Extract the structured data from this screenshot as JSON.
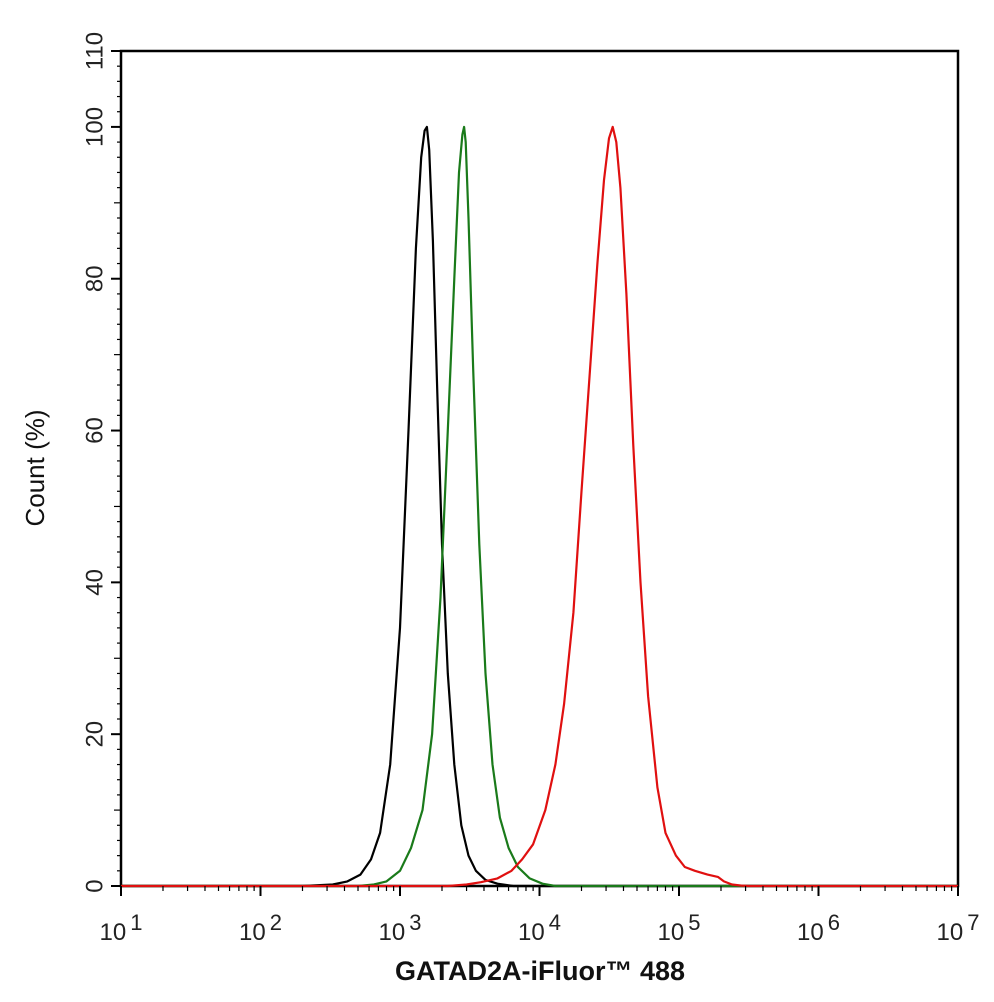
{
  "chart_data": {
    "type": "line",
    "xlabel": "GATAD2A-iFluor™ 488",
    "ylabel": "Count  (%)",
    "x_scale": "log",
    "xlim": [
      10,
      10000000
    ],
    "ylim": [
      0,
      110
    ],
    "x_ticks": [
      {
        "value": 10,
        "base": "10",
        "exp": "1"
      },
      {
        "value": 100,
        "base": "10",
        "exp": "2"
      },
      {
        "value": 1000,
        "base": "10",
        "exp": "3"
      },
      {
        "value": 10000,
        "base": "10",
        "exp": "4"
      },
      {
        "value": 100000,
        "base": "10",
        "exp": "5"
      },
      {
        "value": 1000000,
        "base": "10",
        "exp": "6"
      },
      {
        "value": 10000000,
        "base": "10",
        "exp": "7"
      }
    ],
    "y_ticks": [
      "0",
      "20",
      "40",
      "60",
      "80",
      "100",
      "110"
    ],
    "grid": false,
    "legend": "none",
    "series": [
      {
        "color": "#000000",
        "x": [
          10,
          200,
          330,
          420,
          520,
          620,
          720,
          850,
          1000,
          1150,
          1300,
          1420,
          1500,
          1560,
          1620,
          1720,
          1850,
          2000,
          2200,
          2450,
          2750,
          3100,
          3500,
          4100,
          5000,
          6500,
          10000000
        ],
        "y": [
          0,
          0,
          0.2,
          0.6,
          1.5,
          3.5,
          7,
          16,
          34,
          60,
          84,
          96,
          99.5,
          100,
          97,
          85,
          65,
          45,
          28,
          16,
          8,
          4,
          2,
          0.8,
          0.3,
          0,
          0
        ]
      },
      {
        "color": "#1a7a1a",
        "x": [
          10,
          500,
          650,
          800,
          1000,
          1200,
          1450,
          1700,
          1950,
          2200,
          2450,
          2650,
          2800,
          2880,
          2960,
          3100,
          3350,
          3700,
          4100,
          4600,
          5200,
          6000,
          7000,
          8500,
          10500,
          13000,
          10000000
        ],
        "y": [
          0,
          0,
          0.2,
          0.6,
          2,
          5,
          10,
          20,
          38,
          60,
          80,
          94,
          99,
          100,
          98,
          88,
          68,
          45,
          28,
          16,
          9,
          5,
          2.5,
          1,
          0.3,
          0,
          0
        ]
      },
      {
        "color": "#e01010",
        "x": [
          10,
          2200,
          3000,
          3800,
          5000,
          6300,
          7500,
          9000,
          11000,
          13000,
          15000,
          17500,
          20000,
          23000,
          26000,
          29000,
          31500,
          33500,
          35500,
          38000,
          42000,
          47000,
          53000,
          60000,
          70000,
          80000,
          95000,
          110000,
          130000,
          160000,
          190000,
          210000,
          240000,
          280000,
          320000,
          10000000
        ],
        "y": [
          0,
          0,
          0.2,
          0.5,
          1,
          2,
          3.5,
          5.5,
          10,
          16,
          24,
          36,
          52,
          68,
          82,
          93,
          98.5,
          100,
          98,
          92,
          78,
          58,
          40,
          25,
          13,
          7,
          4,
          2.5,
          2,
          1.5,
          1.2,
          0.6,
          0.2,
          0.05,
          0,
          0
        ]
      }
    ]
  }
}
